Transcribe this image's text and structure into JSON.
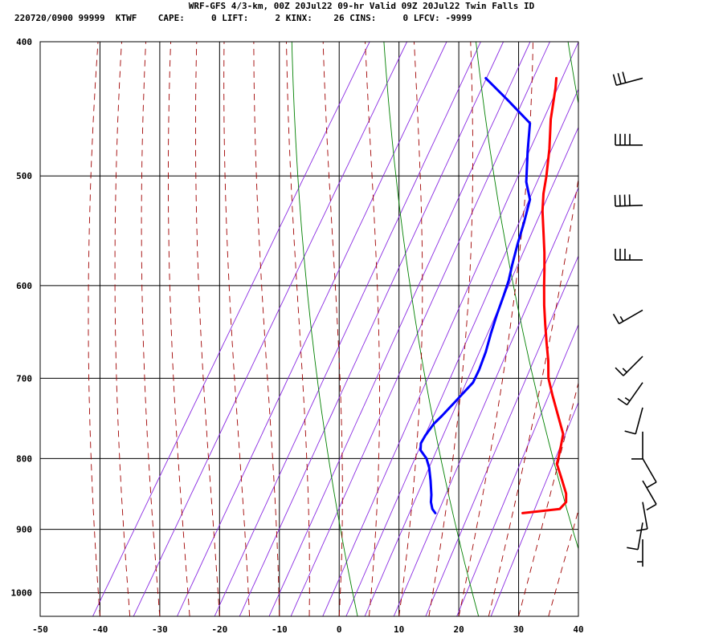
{
  "header": {
    "title": "WRF-GFS 4/3-km, 00Z 20Jul22 09-hr Valid 09Z 20Jul22 Twin Falls ID",
    "stats_line": "220720/0900 99999  KTWF    CAPE:     0 LIFT:     2 KINX:    26 CINS:     0 LFCV: -9999"
  },
  "colors": {
    "temperature": "#ff0000",
    "dewpoint": "#0000ff",
    "isotherms_grid": "#000000",
    "dry_adiabats": "#008000",
    "moist_adiabats": "#a00000",
    "mixing_ratio": "#8a2be2",
    "wind_barbs": "#000000"
  },
  "chart_data": {
    "type": "skew-t",
    "title": "WRF-GFS 4/3-km, 00Z 20Jul22 09-hr Valid 09Z 20Jul22 Twin Falls ID",
    "xlabel": "",
    "ylabel": "",
    "x_ticks": [
      -50,
      -40,
      -30,
      -20,
      -10,
      0,
      10,
      20,
      30,
      40
    ],
    "y_ticks": [
      400,
      500,
      600,
      700,
      800,
      900,
      1000
    ],
    "xlim": [
      -50,
      40
    ],
    "pressure_range_hpa": [
      400,
      1040
    ],
    "y_scale": "log-pressure",
    "skew_c_per_plot": 55,
    "grid": true,
    "series": [
      {
        "key": "temperature",
        "points": [
          [
            876,
            20.8
          ],
          [
            870,
            26.6
          ],
          [
            860,
            27.0
          ],
          [
            848,
            26.2
          ],
          [
            828,
            24.1
          ],
          [
            807,
            21.8
          ],
          [
            797,
            21.4
          ],
          [
            782,
            20.7
          ],
          [
            768,
            20.0
          ],
          [
            745,
            17.4
          ],
          [
            720,
            14.5
          ],
          [
            700,
            12.2
          ],
          [
            680,
            10.5
          ],
          [
            660,
            8.5
          ],
          [
            640,
            6.5
          ],
          [
            620,
            4.5
          ],
          [
            600,
            2.6
          ],
          [
            585,
            1.2
          ],
          [
            568,
            -0.5
          ],
          [
            550,
            -2.5
          ],
          [
            530,
            -4.8
          ],
          [
            515,
            -6.3
          ],
          [
            500,
            -7.5
          ],
          [
            478,
            -9.6
          ],
          [
            455,
            -12.2
          ],
          [
            432,
            -14.4
          ],
          [
            425,
            -15.2
          ]
        ]
      },
      {
        "key": "dewpoint",
        "points": [
          [
            876,
            6.2
          ],
          [
            870,
            5.3
          ],
          [
            860,
            4.4
          ],
          [
            850,
            3.8
          ],
          [
            830,
            2.3
          ],
          [
            812,
            0.8
          ],
          [
            800,
            -0.5
          ],
          [
            789,
            -2.3
          ],
          [
            780,
            -2.9
          ],
          [
            770,
            -2.9
          ],
          [
            755,
            -2.6
          ],
          [
            745,
            -2.0
          ],
          [
            725,
            -1.0
          ],
          [
            705,
            0.0
          ],
          [
            690,
            -0.2
          ],
          [
            670,
            -0.8
          ],
          [
            650,
            -1.7
          ],
          [
            630,
            -2.5
          ],
          [
            610,
            -3.2
          ],
          [
            595,
            -3.8
          ],
          [
            580,
            -4.7
          ],
          [
            560,
            -5.8
          ],
          [
            540,
            -6.8
          ],
          [
            520,
            -8.0
          ],
          [
            505,
            -10.3
          ],
          [
            480,
            -13.0
          ],
          [
            458,
            -15.3
          ],
          [
            440,
            -21.5
          ],
          [
            425,
            -27.0
          ]
        ]
      }
    ],
    "wind_barbs": [
      {
        "pressure_hpa": 425,
        "direction_deg": 255,
        "speed_kt": 30
      },
      {
        "pressure_hpa": 475,
        "direction_deg": 270,
        "speed_kt": 40
      },
      {
        "pressure_hpa": 525,
        "direction_deg": 268,
        "speed_kt": 40
      },
      {
        "pressure_hpa": 575,
        "direction_deg": 270,
        "speed_kt": 35
      },
      {
        "pressure_hpa": 625,
        "direction_deg": 240,
        "speed_kt": 15
      },
      {
        "pressure_hpa": 675,
        "direction_deg": 225,
        "speed_kt": 15
      },
      {
        "pressure_hpa": 705,
        "direction_deg": 215,
        "speed_kt": 15
      },
      {
        "pressure_hpa": 735,
        "direction_deg": 195,
        "speed_kt": 10
      },
      {
        "pressure_hpa": 765,
        "direction_deg": 180,
        "speed_kt": 10
      },
      {
        "pressure_hpa": 800,
        "direction_deg": 150,
        "speed_kt": 10
      },
      {
        "pressure_hpa": 830,
        "direction_deg": 150,
        "speed_kt": 10
      },
      {
        "pressure_hpa": 860,
        "direction_deg": 170,
        "speed_kt": 10
      },
      {
        "pressure_hpa": 890,
        "direction_deg": 190,
        "speed_kt": 10
      },
      {
        "pressure_hpa": 915,
        "direction_deg": 180,
        "speed_kt": 5
      }
    ]
  }
}
